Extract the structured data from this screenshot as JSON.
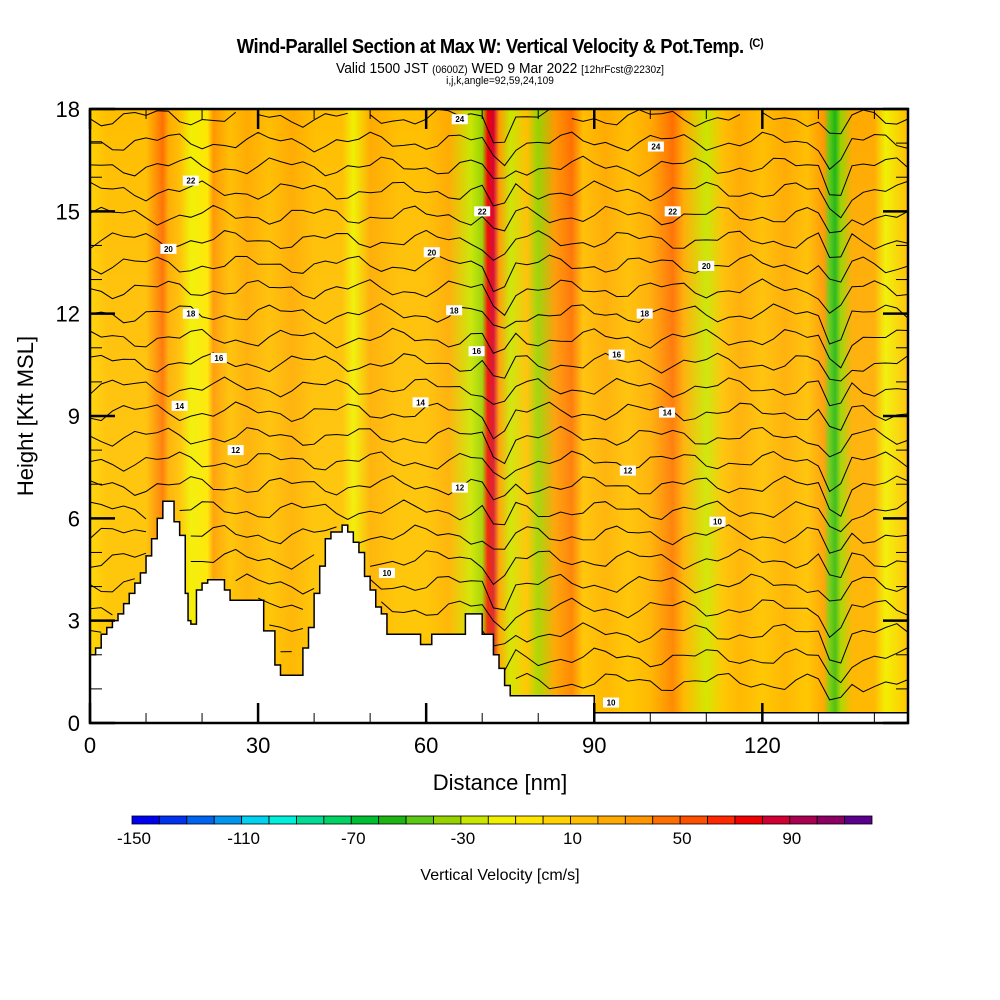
{
  "title": {
    "main": "Wind-Parallel Section at Max W: Vertical Velocity & Pot.Temp.",
    "copyright": "(C)",
    "valid_prefix": "Valid 1500 JST",
    "valid_utc": "(0600Z)",
    "valid_date": "WED 9 Mar 2022",
    "forecast": "[12hrFcst@2230z]",
    "indices": "i,j,k,angle=92,59,24,109"
  },
  "chart_data": {
    "type": "heatmap",
    "title": "Wind-Parallel Section at Max W: Vertical Velocity & Pot.Temp.",
    "xlabel": "Distance [nm]",
    "ylabel": "Height [Kft MSL]",
    "xlim": [
      0,
      146
    ],
    "ylim": [
      0,
      18
    ],
    "x_ticks": [
      "0",
      "30",
      "60",
      "90",
      "120"
    ],
    "x_tick_values": [
      0,
      30,
      60,
      90,
      120
    ],
    "y_ticks": [
      "0",
      "3",
      "6",
      "9",
      "12",
      "15",
      "18"
    ],
    "y_tick_values": [
      0,
      3,
      6,
      9,
      12,
      15,
      18
    ],
    "colorbar": {
      "label": "Vertical Velocity [cm/s]",
      "tick_labels": [
        "-150",
        "-110",
        "-70",
        "-30",
        "10",
        "50",
        "90"
      ],
      "tick_values": [
        -150,
        -110,
        -70,
        -30,
        10,
        50,
        90
      ],
      "min": -150,
      "step": 10,
      "colors": [
        "#0000f0",
        "#0032f0",
        "#0064f0",
        "#0096f0",
        "#00d2f0",
        "#00f0dc",
        "#00dc96",
        "#00d264",
        "#00be32",
        "#1eb414",
        "#5ac814",
        "#96d200",
        "#c8e600",
        "#f0f000",
        "#ffe600",
        "#ffd200",
        "#ffbe00",
        "#ffaa00",
        "#ff9600",
        "#ff6e00",
        "#ff5000",
        "#ff2800",
        "#f00000",
        "#d20032",
        "#aa0050",
        "#8c0064",
        "#5a008c"
      ]
    },
    "field_bands": {
      "description_values_cm_s": "vertical velocity along distance (nm)",
      "x": [
        0,
        3,
        6,
        10,
        13,
        14,
        16,
        18,
        21,
        22,
        25,
        28,
        32,
        36,
        40,
        45,
        47,
        50,
        55,
        60,
        64,
        68,
        70,
        71,
        72,
        73,
        75,
        78,
        80,
        83,
        86,
        88,
        92,
        96,
        100,
        104,
        106,
        110,
        113,
        116,
        120,
        124,
        128,
        131,
        132,
        133,
        134,
        136,
        140,
        142,
        146
      ],
      "w": [
        5,
        10,
        15,
        10,
        40,
        20,
        10,
        -20,
        -10,
        30,
        10,
        20,
        10,
        20,
        15,
        10,
        -20,
        20,
        10,
        15,
        25,
        -30,
        -40,
        70,
        80,
        30,
        -30,
        10,
        -40,
        30,
        40,
        10,
        20,
        15,
        25,
        40,
        20,
        -30,
        10,
        20,
        10,
        20,
        15,
        30,
        -50,
        -55,
        -40,
        20,
        25,
        -20,
        10
      ]
    },
    "theta_contours": {
      "units": "deg C (labels)",
      "levels": [
        10,
        12,
        14,
        16,
        18,
        20,
        22,
        24
      ],
      "labels": [
        {
          "text": "24",
          "x": 66,
          "y": 17.7
        },
        {
          "text": "24",
          "x": 101,
          "y": 16.9
        },
        {
          "text": "22",
          "x": 18,
          "y": 15.9
        },
        {
          "text": "22",
          "x": 70,
          "y": 15.0
        },
        {
          "text": "22",
          "x": 104,
          "y": 15.0
        },
        {
          "text": "20",
          "x": 14,
          "y": 13.9
        },
        {
          "text": "20",
          "x": 61,
          "y": 13.8
        },
        {
          "text": "20",
          "x": 110,
          "y": 13.4
        },
        {
          "text": "18",
          "x": 18,
          "y": 12.0
        },
        {
          "text": "18",
          "x": 65,
          "y": 12.1
        },
        {
          "text": "18",
          "x": 99,
          "y": 12.0
        },
        {
          "text": "16",
          "x": 23,
          "y": 10.7
        },
        {
          "text": "16",
          "x": 69,
          "y": 10.9
        },
        {
          "text": "16",
          "x": 94,
          "y": 10.8
        },
        {
          "text": "14",
          "x": 16,
          "y": 9.3
        },
        {
          "text": "14",
          "x": 59,
          "y": 9.4
        },
        {
          "text": "14",
          "x": 103,
          "y": 9.1
        },
        {
          "text": "12",
          "x": 26,
          "y": 8.0
        },
        {
          "text": "12",
          "x": 66,
          "y": 6.9
        },
        {
          "text": "12",
          "x": 96,
          "y": 7.4
        },
        {
          "text": "10",
          "x": 53,
          "y": 4.4
        },
        {
          "text": "10",
          "x": 112,
          "y": 5.9
        },
        {
          "text": "10",
          "x": 93,
          "y": 0.6
        }
      ]
    },
    "terrain": {
      "units": "kft vs nm",
      "x": [
        0,
        0.5,
        1,
        2,
        3,
        4,
        5,
        6,
        7,
        8,
        9,
        10,
        11,
        12,
        13,
        13.5,
        14,
        15,
        16,
        17,
        17.5,
        18,
        19,
        20,
        21,
        22,
        24,
        25,
        26,
        27,
        28,
        30,
        31,
        32,
        33,
        34,
        35,
        37,
        38,
        39,
        40,
        41,
        42,
        43,
        44,
        45,
        46,
        47,
        48,
        49,
        50,
        51,
        52,
        53,
        54,
        55,
        58,
        59,
        60,
        61,
        62,
        63,
        64,
        65,
        66,
        67,
        68,
        69,
        70,
        71,
        72,
        73,
        74,
        75,
        76,
        77,
        78,
        79,
        80,
        81,
        82,
        83,
        84,
        85,
        86,
        87,
        88,
        89,
        90,
        146
      ],
      "h": [
        2.0,
        2.0,
        2.2,
        2.6,
        2.8,
        3.0,
        3.2,
        3.5,
        3.8,
        4.1,
        4.4,
        4.9,
        5.4,
        6.0,
        6.5,
        6.5,
        6.5,
        5.9,
        5.5,
        3.8,
        3.0,
        2.9,
        3.9,
        4.1,
        4.2,
        4.2,
        3.9,
        3.6,
        3.6,
        3.6,
        3.6,
        3.6,
        2.7,
        2.7,
        1.7,
        1.4,
        1.4,
        1.4,
        2.2,
        2.8,
        3.8,
        4.6,
        5.4,
        5.6,
        5.6,
        5.8,
        5.6,
        5.3,
        5.0,
        4.3,
        3.9,
        3.4,
        3.2,
        2.6,
        2.6,
        2.6,
        2.6,
        2.3,
        2.3,
        2.6,
        2.6,
        2.6,
        2.6,
        2.6,
        2.6,
        3.2,
        3.2,
        3.2,
        2.6,
        2.6,
        2.0,
        1.6,
        1.1,
        0.8,
        0.8,
        0.8,
        0.8,
        0.8,
        0.8,
        0.8,
        0.8,
        0.8,
        0.8,
        0.8,
        0.8,
        0.8,
        0.8,
        0.8,
        0.3,
        0.3
      ]
    }
  }
}
